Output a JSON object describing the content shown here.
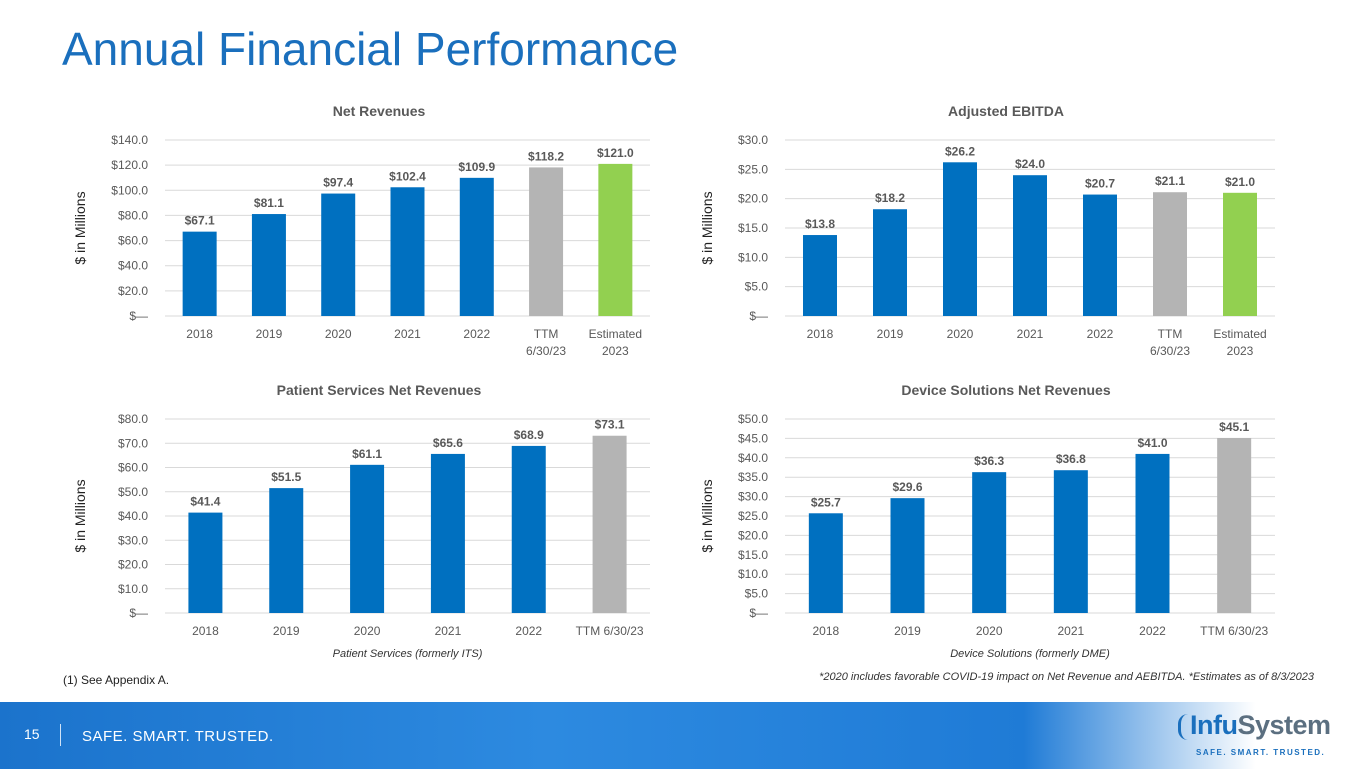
{
  "page": {
    "title": "Annual Financial Performance",
    "footnote_left": "(1) See Appendix A.",
    "footnote_right": "*2020 includes favorable COVID-19 impact on Net Revenue and AEBITDA.  *Estimates as of 8/3/2023",
    "page_number": "15",
    "tagline": "SAFE. SMART. TRUSTED.",
    "logo_text_a": "Infu",
    "logo_text_b": "System",
    "logo_tagline": "SAFE. SMART. TRUSTED.",
    "colors": {
      "blue": "#0070c0",
      "gray": "#b4b4b4",
      "green": "#92d050"
    }
  },
  "chart_data": [
    {
      "type": "bar",
      "title": "Net Revenues",
      "ylabel": "$ in Millions",
      "xlabel": "",
      "categories": [
        "2018",
        "2019",
        "2020",
        "2021",
        "2022",
        "TTM\n6/30/23",
        "Estimated\n2023"
      ],
      "values": [
        67.1,
        81.1,
        97.4,
        102.4,
        109.9,
        118.2,
        121.0
      ],
      "labels": [
        "$67.1",
        "$81.1",
        "$97.4",
        "$102.4",
        "$109.9",
        "$118.2",
        "$121.0"
      ],
      "bar_colors": [
        "blue",
        "blue",
        "blue",
        "blue",
        "blue",
        "gray",
        "green"
      ],
      "ylim": [
        0,
        140
      ],
      "yticks": [
        0,
        20,
        40,
        60,
        80,
        100,
        120,
        140
      ],
      "ytick_labels": [
        "$—",
        "$20.0",
        "$40.0",
        "$60.0",
        "$80.0",
        "$100.0",
        "$120.0",
        "$140.0"
      ],
      "grid": true
    },
    {
      "type": "bar",
      "title": "Adjusted EBITDA",
      "ylabel": "$ in Millions",
      "xlabel": "",
      "categories": [
        "2018",
        "2019",
        "2020",
        "2021",
        "2022",
        "TTM\n6/30/23",
        "Estimated\n2023"
      ],
      "values": [
        13.8,
        18.2,
        26.2,
        24.0,
        20.7,
        21.1,
        21.0
      ],
      "labels": [
        "$13.8",
        "$18.2",
        "$26.2",
        "$24.0",
        "$20.7",
        "$21.1",
        "$21.0"
      ],
      "bar_colors": [
        "blue",
        "blue",
        "blue",
        "blue",
        "blue",
        "gray",
        "green"
      ],
      "ylim": [
        0,
        30
      ],
      "yticks": [
        0,
        5,
        10,
        15,
        20,
        25,
        30
      ],
      "ytick_labels": [
        "$—",
        "$5.0",
        "$10.0",
        "$15.0",
        "$20.0",
        "$25.0",
        "$30.0"
      ],
      "grid": true
    },
    {
      "type": "bar",
      "title": "Patient Services Net Revenues",
      "ylabel": "$ in Millions",
      "xlabel": "Patient Services (formerly ITS)",
      "categories": [
        "2018",
        "2019",
        "2020",
        "2021",
        "2022",
        "TTM 6/30/23"
      ],
      "values": [
        41.4,
        51.5,
        61.1,
        65.6,
        68.9,
        73.1
      ],
      "labels": [
        "$41.4",
        "$51.5",
        "$61.1",
        "$65.6",
        "$68.9",
        "$73.1"
      ],
      "bar_colors": [
        "blue",
        "blue",
        "blue",
        "blue",
        "blue",
        "gray"
      ],
      "ylim": [
        0,
        80
      ],
      "yticks": [
        0,
        10,
        20,
        30,
        40,
        50,
        60,
        70,
        80
      ],
      "ytick_labels": [
        "$—",
        "$10.0",
        "$20.0",
        "$30.0",
        "$40.0",
        "$50.0",
        "$60.0",
        "$70.0",
        "$80.0"
      ],
      "grid": true
    },
    {
      "type": "bar",
      "title": "Device Solutions Net Revenues",
      "ylabel": "$ in Millions",
      "xlabel": "Device Solutions (formerly DME)",
      "categories": [
        "2018",
        "2019",
        "2020",
        "2021",
        "2022",
        "TTM 6/30/23"
      ],
      "values": [
        25.7,
        29.6,
        36.3,
        36.8,
        41.0,
        45.1
      ],
      "labels": [
        "$25.7",
        "$29.6",
        "$36.3",
        "$36.8",
        "$41.0",
        "$45.1"
      ],
      "bar_colors": [
        "blue",
        "blue",
        "blue",
        "blue",
        "blue",
        "gray"
      ],
      "ylim": [
        0,
        50
      ],
      "yticks": [
        0,
        5,
        10,
        15,
        20,
        25,
        30,
        35,
        40,
        45,
        50
      ],
      "ytick_labels": [
        "$—",
        "$5.0",
        "$10.0",
        "$15.0",
        "$20.0",
        "$25.0",
        "$30.0",
        "$35.0",
        "$40.0",
        "$45.0",
        "$50.0"
      ],
      "grid": true
    }
  ]
}
